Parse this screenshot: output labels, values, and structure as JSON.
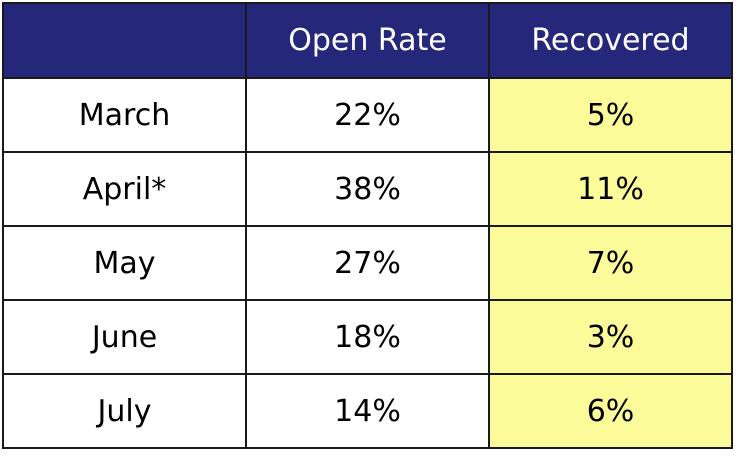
{
  "chart_data": {
    "type": "table",
    "columns": [
      "",
      "Open Rate",
      "Recovered"
    ],
    "rows": [
      {
        "month": "March",
        "open_rate": "22%",
        "recovered": "5%"
      },
      {
        "month": "April*",
        "open_rate": "38%",
        "recovered": "11%"
      },
      {
        "month": "May",
        "open_rate": "27%",
        "recovered": "7%"
      },
      {
        "month": "June",
        "open_rate": "18%",
        "recovered": "3%"
      },
      {
        "month": "July",
        "open_rate": "14%",
        "recovered": "6%"
      }
    ]
  },
  "colors": {
    "header_bg": "#25287a",
    "header_text": "#ffffff",
    "recovered_bg": "#fbfb99",
    "border": "#1a1a1a"
  }
}
